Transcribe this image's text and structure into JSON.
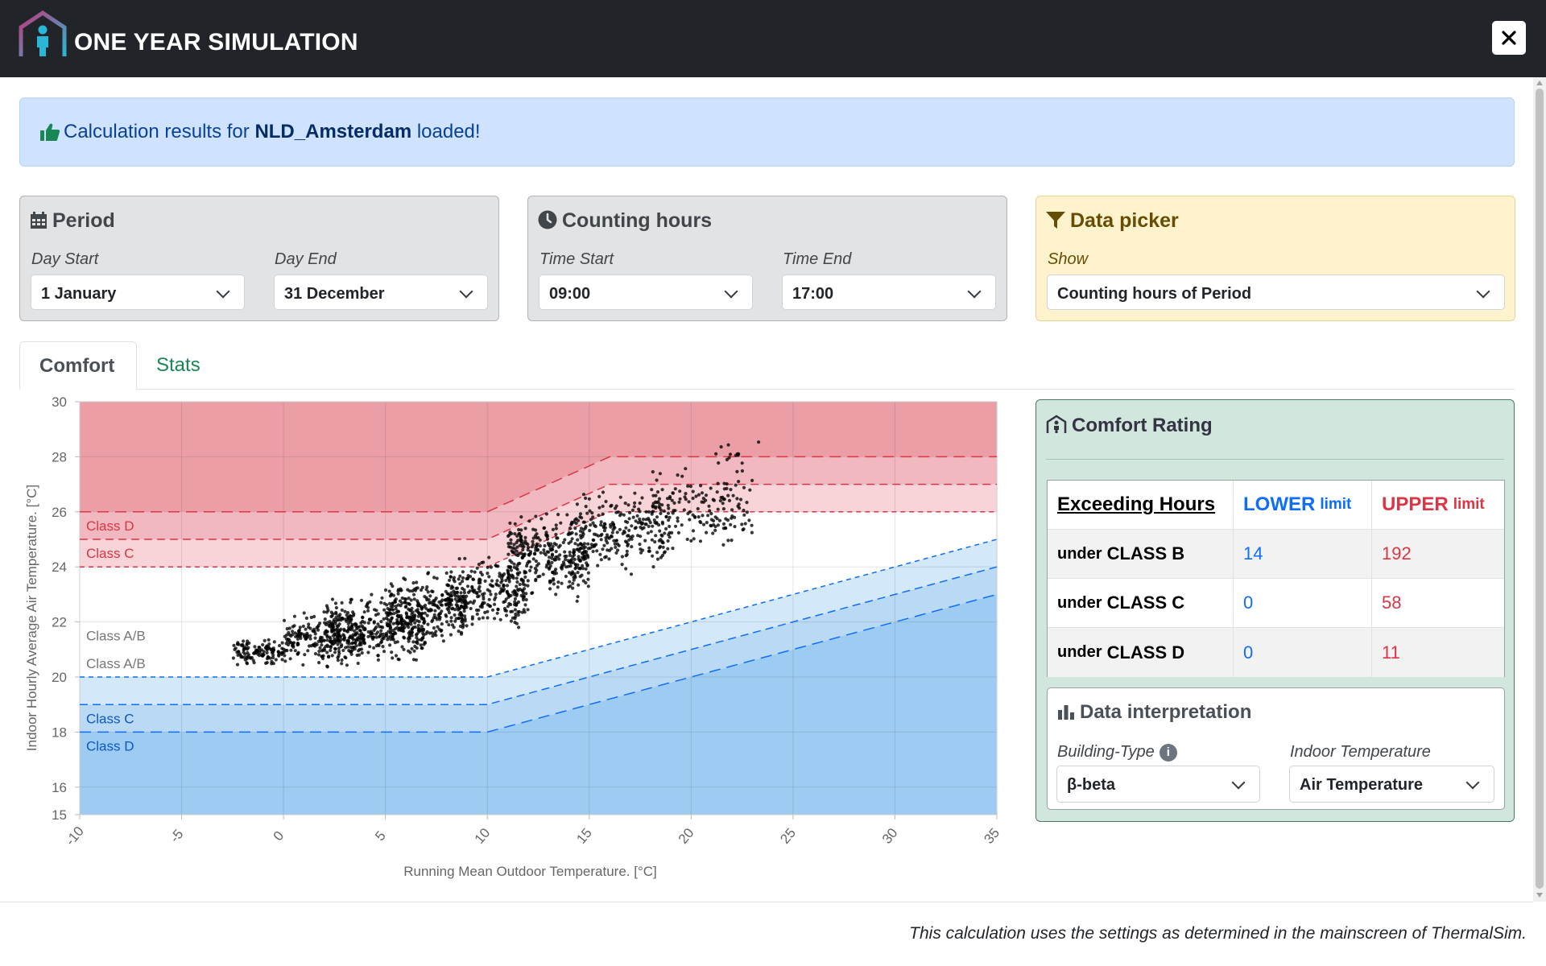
{
  "app": {
    "title": "ONE YEAR SIMULATION"
  },
  "alert": {
    "prefix": "Calculation results for",
    "location": "NLD_Amsterdam",
    "suffix": "loaded!"
  },
  "period": {
    "title": "Period",
    "day_start_label": "Day Start",
    "day_start": "1 January",
    "day_end_label": "Day End",
    "day_end": "31 December"
  },
  "counting": {
    "title": "Counting hours",
    "time_start_label": "Time Start",
    "time_start": "09:00",
    "time_end_label": "Time End",
    "time_end": "17:00"
  },
  "picker": {
    "title": "Data picker",
    "show_label": "Show",
    "show_value": "Counting hours of Period"
  },
  "tabs": [
    {
      "label": "Comfort"
    },
    {
      "label": "Stats"
    }
  ],
  "rating": {
    "title": "Comfort Rating",
    "header": {
      "col1": "Exceeding Hours",
      "lower": "LOWER",
      "upper": "UPPER",
      "limit": "limit"
    },
    "rows": [
      {
        "prefix": "under",
        "cls": "CLASS B",
        "lower": "14",
        "upper": "192"
      },
      {
        "prefix": "under",
        "cls": "CLASS C",
        "lower": "0",
        "upper": "58"
      },
      {
        "prefix": "under",
        "cls": "CLASS D",
        "lower": "0",
        "upper": "11"
      }
    ]
  },
  "interpretation": {
    "title": "Data interpretation",
    "building_label": "Building-Type",
    "building_value": "β-beta",
    "indoor_label": "Indoor Temperature",
    "indoor_value": "Air Temperature"
  },
  "footer": "This calculation uses the settings as determined in the mainscreen of ThermalSim.",
  "chart_data": {
    "type": "scatter",
    "xlabel": "Running Mean Outdoor Temperature. [°C]",
    "ylabel": "Indoor Hourly Average Air Temperature. [°C]",
    "xlim": [
      -10,
      35
    ],
    "ylim": [
      15,
      30
    ],
    "xticks": [
      "-10",
      "-5",
      "0",
      "5",
      "10",
      "15",
      "20",
      "25",
      "30",
      "35"
    ],
    "yticks": [
      "15",
      "16",
      "18",
      "20",
      "22",
      "24",
      "26",
      "28",
      "30"
    ],
    "band_labels": [
      "Class D",
      "Class C",
      "Class A/B",
      "Class A/B",
      "Class C",
      "Class D"
    ],
    "comfort_bands": {
      "upper_D": {
        "x": [
          -10,
          10,
          16,
          35
        ],
        "y": [
          26,
          26,
          28,
          28
        ]
      },
      "upper_C": {
        "x": [
          -10,
          10,
          16,
          35
        ],
        "y": [
          25,
          25,
          27,
          27
        ]
      },
      "upper_B": {
        "x": [
          -10,
          10,
          16,
          35
        ],
        "y": [
          24,
          24,
          26,
          26
        ]
      },
      "lower_B": {
        "x": [
          -10,
          10,
          35
        ],
        "y": [
          20,
          20,
          25
        ]
      },
      "lower_C": {
        "x": [
          -10,
          10,
          35
        ],
        "y": [
          19,
          19,
          24
        ]
      },
      "lower_D": {
        "x": [
          -10,
          10,
          35
        ],
        "y": [
          18,
          18,
          23
        ]
      }
    },
    "point_clusters": [
      {
        "x": [
          -2.5,
          0
        ],
        "y": [
          20.3,
          21.5
        ]
      },
      {
        "x": [
          0,
          4
        ],
        "y": [
          20.2,
          22.6
        ]
      },
      {
        "x": [
          2,
          7
        ],
        "y": [
          20.2,
          23.2
        ]
      },
      {
        "x": [
          5,
          9
        ],
        "y": [
          20.8,
          24.0
        ]
      },
      {
        "x": [
          8,
          12
        ],
        "y": [
          21.3,
          24.8
        ]
      },
      {
        "x": [
          11,
          15
        ],
        "y": [
          22.5,
          26.3
        ]
      },
      {
        "x": [
          14,
          19
        ],
        "y": [
          23.5,
          27.2
        ]
      },
      {
        "x": [
          18,
          23
        ],
        "y": [
          24.3,
          27.8
        ]
      },
      {
        "x": [
          21,
          23.5
        ],
        "y": [
          26.8,
          29.0
        ]
      }
    ],
    "colors": {
      "red": "#dc3545",
      "blue": "#0d6efd"
    }
  },
  "colors": {
    "header": "#212529",
    "alert_bg": "#cfe2ff",
    "success_bg": "#d1e7dd",
    "warning_bg": "#fff3cd"
  }
}
